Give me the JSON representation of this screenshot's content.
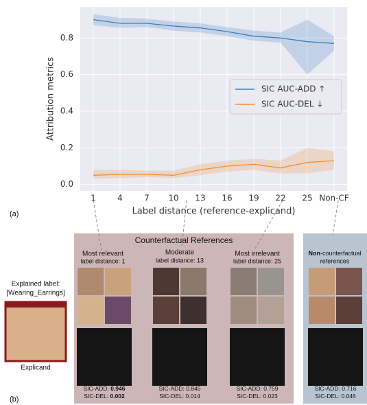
{
  "chart_data": {
    "type": "line",
    "categories": [
      "1",
      "4",
      "7",
      "10",
      "13",
      "16",
      "19",
      "22",
      "25",
      "Non-CF"
    ],
    "x_label": "Label distance (reference-explicand)",
    "y_label": "Attribution metrics",
    "ylim": [
      -0.035,
      0.97
    ],
    "yticks": [
      {
        "value": 0,
        "label": "0.0"
      },
      0.2,
      0.4,
      0.6,
      0.8
    ],
    "grid": true,
    "legend": "center right",
    "series": [
      {
        "name": "SIC AUC-ADD ↑",
        "color": "#3a7dbd",
        "values": [
          0.9,
          0.88,
          0.88,
          0.865,
          0.855,
          0.835,
          0.81,
          0.8,
          0.78,
          0.77
        ],
        "upper": [
          0.93,
          0.91,
          0.905,
          0.89,
          0.88,
          0.86,
          0.84,
          0.83,
          0.9,
          0.81
        ],
        "lower": [
          0.87,
          0.855,
          0.86,
          0.84,
          0.83,
          0.81,
          0.785,
          0.775,
          0.6,
          0.73
        ]
      },
      {
        "name": "SIC AUC-DEL  ↓",
        "color": "#f28e2b",
        "values": [
          0.05,
          0.055,
          0.055,
          0.05,
          0.08,
          0.1,
          0.11,
          0.09,
          0.12,
          0.13
        ],
        "upper": [
          0.08,
          0.08,
          0.075,
          0.075,
          0.11,
          0.13,
          0.14,
          0.13,
          0.2,
          0.18
        ],
        "lower": [
          0.03,
          0.035,
          0.04,
          0.035,
          0.05,
          0.07,
          0.08,
          0.06,
          0.06,
          0.08
        ]
      }
    ]
  },
  "figure": {
    "label_a": "(a)",
    "label_b": "(b)",
    "title": "Counterfactual References",
    "explained": [
      "Explained label:",
      "[Wearing_Earrings]"
    ],
    "explicand": "Explicand",
    "columns": [
      {
        "title": "Most relevant",
        "subtitle": "label distance: 1",
        "add": [
          "SIC-ADD: ",
          "0.946"
        ],
        "del": [
          "SIC-DEL: ",
          "0.002"
        ]
      },
      {
        "title": "Moderate",
        "subtitle": "label distance: 13",
        "add": [
          "SIC-ADD: ",
          "0.845"
        ],
        "del": [
          "SIC-DEL: ",
          "0.014"
        ]
      },
      {
        "title": "Most irrelevant",
        "subtitle": "label distance: 25",
        "add": [
          "SIC-ADD: ",
          "0.759"
        ],
        "del": [
          "SIC-DEL: ",
          "0.023"
        ]
      },
      {
        "title": [
          "Non",
          "-counterfactual"
        ],
        "subtitle": "references",
        "add": [
          "SIC-ADD: ",
          "0.716"
        ],
        "del": [
          "SIC-DEL: ",
          "0.046"
        ]
      }
    ]
  }
}
